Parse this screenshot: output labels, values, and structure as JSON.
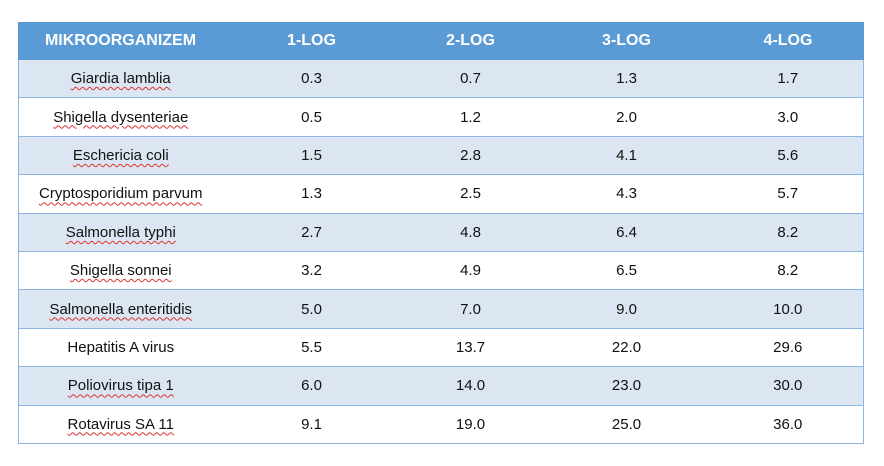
{
  "table": {
    "header": [
      "MIKROORGANIZEM",
      "1-LOG",
      "2-LOG",
      "3-LOG",
      "4-LOG"
    ],
    "rows": [
      [
        "Giardia lamblia",
        "0.3",
        "0.7",
        "1.3",
        "1.7"
      ],
      [
        "Shigella dysenteriae",
        "0.5",
        "1.2",
        "2.0",
        "3.0"
      ],
      [
        "Eschericia coli",
        "1.5",
        "2.8",
        "4.1",
        "5.6"
      ],
      [
        "Cryptosporidium parvum",
        "1.3",
        "2.5",
        "4.3",
        "5.7"
      ],
      [
        "Salmonella typhi",
        "2.7",
        "4.8",
        "6.4",
        "8.2"
      ],
      [
        "Shigella sonnei",
        "3.2",
        "4.9",
        "6.5",
        "8.2"
      ],
      [
        "Salmonella enteritidis",
        "5.0",
        "7.0",
        "9.0",
        "10.0"
      ],
      [
        "Hepatitis A virus",
        "5.5",
        "13.7",
        "22.0",
        "29.6"
      ],
      [
        "Poliovirus tipa 1",
        "6.0",
        "14.0",
        "23.0",
        "30.0"
      ],
      [
        "Rotavirus SA 11",
        "9.1",
        "19.0",
        "25.0",
        "36.0"
      ]
    ]
  }
}
